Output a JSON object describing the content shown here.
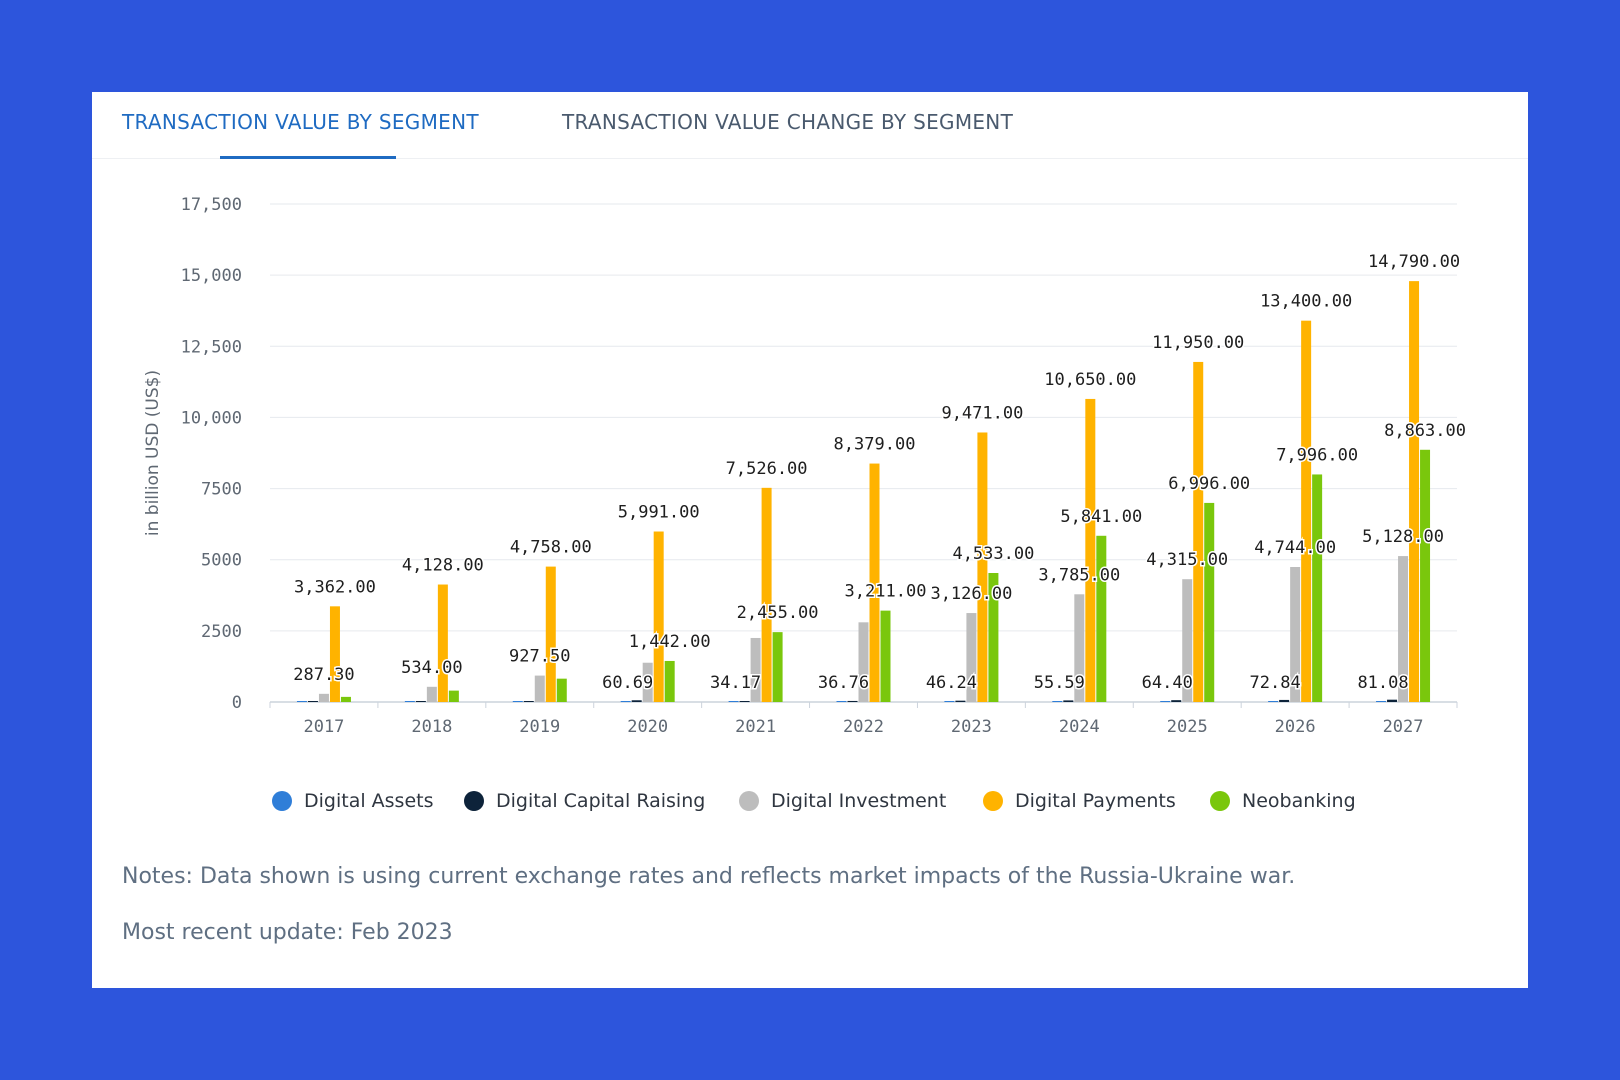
{
  "tabs": [
    {
      "label": "TRANSACTION VALUE BY SEGMENT",
      "active": true
    },
    {
      "label": "TRANSACTION VALUE CHANGE BY SEGMENT",
      "active": false
    }
  ],
  "notes": {
    "line1": "Notes: Data shown is using current exchange rates and reflects market impacts of the Russia-Ukraine war.",
    "line2": "Most recent update: Feb 2023"
  },
  "colors": {
    "background": "#2d55dc",
    "active_tab": "#1f6bc2",
    "digital_assets": "#2f7ed8",
    "digital_capital_raising": "#0d233a",
    "digital_investment": "#bdbdbd",
    "digital_payments": "#ffb300",
    "neobanking": "#7ac70c"
  },
  "chart_data": {
    "type": "bar",
    "ylabel": "in billion USD (US$)",
    "ylim": [
      0,
      17500
    ],
    "yticks": [
      0,
      2500,
      5000,
      7500,
      10000,
      12500,
      15000,
      17500
    ],
    "ytick_labels": [
      "0",
      "2500",
      "5000",
      "7500",
      "10,000",
      "12,500",
      "15,000",
      "17,500"
    ],
    "categories": [
      "2017",
      "2018",
      "2019",
      "2020",
      "2021",
      "2022",
      "2023",
      "2024",
      "2025",
      "2026",
      "2027"
    ],
    "legend_position": "bottom",
    "grid": true,
    "series": [
      {
        "name": "Digital Assets",
        "color": "#2f7ed8",
        "values": [
          5,
          8,
          10,
          20,
          22,
          24,
          26,
          28,
          30,
          32,
          34
        ],
        "labels": []
      },
      {
        "name": "Digital Capital Raising",
        "color": "#0d233a",
        "values": [
          15,
          20,
          25,
          60.69,
          34.17,
          36.76,
          46.24,
          55.59,
          64.4,
          72.84,
          81.08
        ],
        "labels": [
          "",
          "",
          "",
          "60.69",
          "34.17",
          "36.76",
          "46.24",
          "55.59",
          "64.40",
          "72.84",
          "81.08"
        ]
      },
      {
        "name": "Digital Investment",
        "color": "#bdbdbd",
        "values": [
          287.3,
          534.0,
          927.5,
          1380,
          2250,
          2800,
          3126.0,
          3785.0,
          4315.0,
          4744.0,
          5128.0
        ],
        "labels": [
          "287.30",
          "534.00",
          "927.50",
          "",
          "",
          "",
          "3,126.00",
          "3,785.00",
          "4,315.00",
          "4,744.00",
          "5,128.00"
        ]
      },
      {
        "name": "Digital Payments",
        "color": "#ffb300",
        "values": [
          3362.0,
          4128.0,
          4758.0,
          5991.0,
          7526.0,
          8379.0,
          9471.0,
          10650.0,
          11950.0,
          13400.0,
          14790.0
        ],
        "labels": [
          "3,362.00",
          "4,128.00",
          "4,758.00",
          "5,991.00",
          "7,526.00",
          "8,379.00",
          "9,471.00",
          "10,650.00",
          "11,950.00",
          "13,400.00",
          "14,790.00"
        ]
      },
      {
        "name": "Neobanking",
        "color": "#7ac70c",
        "values": [
          180,
          400,
          820,
          1442.0,
          2455.0,
          3211.0,
          4533.0,
          5841.0,
          6996.0,
          7996.0,
          8863.0
        ],
        "labels": [
          "",
          "",
          "",
          "1,442.00",
          "2,455.00",
          "3,211.00",
          "4,533.00",
          "5,841.00",
          "6,996.00",
          "7,996.00",
          "8,863.00"
        ]
      }
    ]
  }
}
